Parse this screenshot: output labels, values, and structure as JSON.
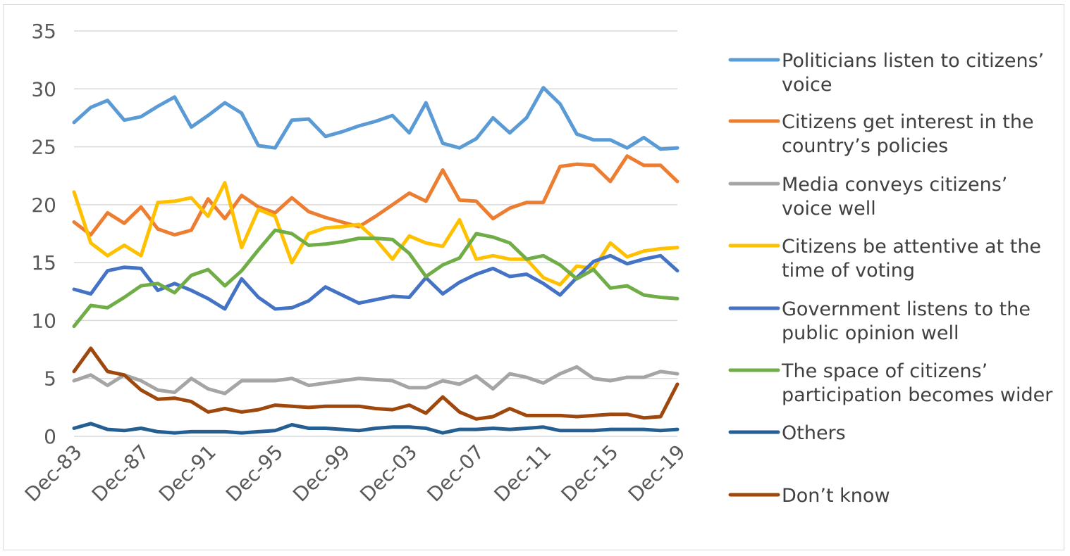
{
  "chart_data": {
    "type": "line",
    "title": "",
    "xlabel": "",
    "ylabel": "",
    "ylim": [
      0,
      35
    ],
    "yticks": [
      "0",
      "5",
      "10",
      "15",
      "20",
      "25",
      "30",
      "35"
    ],
    "grid": true,
    "legend_position": "right",
    "xtick_labels": [
      "Dec-83",
      "Dec-87",
      "Dec-91",
      "Dec-95",
      "Dec-99",
      "Dec-03",
      "Dec-07",
      "Dec-11",
      "Dec-15",
      "Dec-19"
    ],
    "x_count": 37,
    "series": [
      {
        "name": "Politicians listen to citizens’ voice",
        "legend_lines": [
          "Politicians listen to citizens’",
          "voice"
        ],
        "color": "#5b9bd5",
        "values": [
          27.1,
          28.4,
          29.0,
          27.3,
          27.6,
          28.5,
          29.3,
          26.7,
          27.7,
          28.8,
          27.9,
          25.1,
          24.9,
          27.3,
          27.4,
          25.9,
          26.3,
          26.8,
          27.2,
          27.7,
          26.2,
          28.8,
          25.3,
          24.9,
          25.7,
          27.5,
          26.2,
          27.5,
          30.1,
          28.7,
          26.1,
          25.6,
          25.6,
          24.9,
          25.8,
          24.8,
          24.9
        ]
      },
      {
        "name": "Citizens get interest in the country’s policies",
        "legend_lines": [
          "Citizens get interest in the",
          "country’s policies"
        ],
        "color": "#ed7d31",
        "values": [
          18.5,
          17.4,
          19.3,
          18.4,
          19.8,
          17.9,
          17.4,
          17.8,
          20.5,
          18.8,
          20.8,
          19.8,
          19.3,
          20.6,
          19.4,
          18.9,
          18.5,
          18.1,
          19.0,
          20.0,
          21.0,
          20.3,
          23.0,
          20.4,
          20.3,
          18.8,
          19.7,
          20.2,
          20.2,
          23.3,
          23.5,
          23.4,
          22.0,
          24.2,
          23.4,
          23.4,
          22.0
        ]
      },
      {
        "name": "Media conveys citizens’ voice well",
        "legend_lines": [
          "Media conveys citizens’",
          "voice well"
        ],
        "color": "#a5a5a5",
        "values": [
          4.8,
          5.3,
          4.4,
          5.3,
          4.8,
          4.0,
          3.8,
          5.0,
          4.1,
          3.7,
          4.8,
          4.8,
          4.8,
          5.0,
          4.4,
          4.6,
          4.8,
          5.0,
          4.9,
          4.8,
          4.2,
          4.2,
          4.8,
          4.5,
          5.2,
          4.1,
          5.4,
          5.1,
          4.6,
          5.4,
          6.0,
          5.0,
          4.8,
          5.1,
          5.1,
          5.6,
          5.4
        ]
      },
      {
        "name": "Citizens be attentive at the time of voting",
        "legend_lines": [
          "Citizens be attentive at the",
          "time of voting"
        ],
        "color": "#ffc000",
        "values": [
          21.1,
          16.7,
          15.6,
          16.5,
          15.6,
          20.2,
          20.3,
          20.6,
          19.0,
          21.9,
          16.3,
          19.6,
          19.0,
          15.0,
          17.5,
          18.0,
          18.1,
          18.3,
          17.0,
          15.3,
          17.3,
          16.7,
          16.4,
          18.7,
          15.3,
          15.6,
          15.3,
          15.3,
          13.7,
          13.1,
          14.7,
          14.5,
          16.7,
          15.5,
          16.0,
          16.2,
          16.3
        ]
      },
      {
        "name": "Government listens to the public opinion well",
        "legend_lines": [
          "Government listens to the",
          "public opinion well"
        ],
        "color": "#4472c4",
        "values": [
          12.7,
          12.3,
          14.3,
          14.6,
          14.5,
          12.6,
          13.2,
          12.6,
          11.9,
          11.0,
          13.6,
          12.0,
          11.0,
          11.1,
          11.7,
          12.9,
          12.2,
          11.5,
          11.8,
          12.1,
          12.0,
          13.7,
          12.3,
          13.3,
          14.0,
          14.5,
          13.8,
          14.0,
          13.2,
          12.2,
          13.7,
          15.1,
          15.6,
          14.9,
          15.3,
          15.6,
          14.3
        ]
      },
      {
        "name": "The space of citizens’ participation becomes wider",
        "legend_lines": [
          "The space of citizens’",
          "participation becomes wider"
        ],
        "color": "#70ad47",
        "values": [
          9.5,
          11.3,
          11.1,
          12.0,
          13.0,
          13.2,
          12.4,
          13.9,
          14.4,
          13.0,
          14.3,
          16.1,
          17.8,
          17.5,
          16.5,
          16.6,
          16.8,
          17.1,
          17.1,
          17.0,
          15.8,
          13.8,
          14.8,
          15.4,
          17.5,
          17.2,
          16.7,
          15.3,
          15.6,
          14.8,
          13.6,
          14.4,
          12.8,
          13.0,
          12.2,
          12.0,
          11.9
        ]
      },
      {
        "name": "Others",
        "legend_lines": [
          "Others"
        ],
        "color": "#255e91",
        "values": [
          0.7,
          1.1,
          0.6,
          0.5,
          0.7,
          0.4,
          0.3,
          0.4,
          0.4,
          0.4,
          0.3,
          0.4,
          0.5,
          1.0,
          0.7,
          0.7,
          0.6,
          0.5,
          0.7,
          0.8,
          0.8,
          0.7,
          0.3,
          0.6,
          0.6,
          0.7,
          0.6,
          0.7,
          0.8,
          0.5,
          0.5,
          0.5,
          0.6,
          0.6,
          0.6,
          0.5,
          0.6
        ]
      },
      {
        "name": "Don’t know",
        "legend_lines": [
          "Don’t know"
        ],
        "color": "#9e480e",
        "values": [
          5.6,
          7.6,
          5.6,
          5.3,
          4.0,
          3.2,
          3.3,
          3.0,
          2.1,
          2.4,
          2.1,
          2.3,
          2.7,
          2.6,
          2.5,
          2.6,
          2.6,
          2.6,
          2.4,
          2.3,
          2.7,
          2.0,
          3.4,
          2.1,
          1.5,
          1.7,
          2.4,
          1.8,
          1.8,
          1.8,
          1.7,
          1.8,
          1.9,
          1.9,
          1.6,
          1.7,
          4.5
        ]
      }
    ]
  }
}
